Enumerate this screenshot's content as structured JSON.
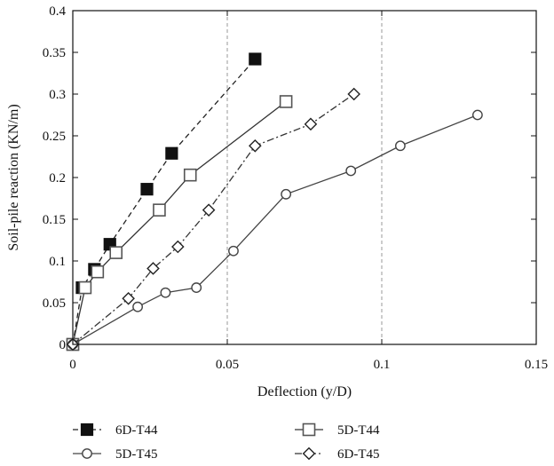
{
  "chart_data": {
    "type": "line",
    "xlabel": "Deflection (y/D)",
    "ylabel": "Soil-pile reaction (KN/m)",
    "xlim": [
      0,
      0.15
    ],
    "ylim": [
      0,
      0.4
    ],
    "xticks": [
      "0",
      "0.05",
      "0.1",
      "0.15"
    ],
    "yticks": [
      "0",
      "0.05",
      "0.1",
      "0.15",
      "0.2",
      "0.25",
      "0.3",
      "0.35",
      "0.4"
    ],
    "grid": "vertical dashed at x ticks",
    "legend_position": "bottom",
    "series": [
      {
        "name": "6D-T44",
        "marker": "square-filled",
        "line": "dashed",
        "color": "#222222",
        "x": [
          0,
          0.003,
          0.007,
          0.012,
          0.024,
          0.032,
          0.059
        ],
        "y": [
          0,
          0.068,
          0.09,
          0.12,
          0.186,
          0.229,
          0.342
        ]
      },
      {
        "name": "5D-T44",
        "marker": "square-open",
        "line": "solid",
        "color": "#333333",
        "x": [
          0,
          0.004,
          0.008,
          0.014,
          0.028,
          0.038,
          0.069
        ],
        "y": [
          0,
          0.068,
          0.087,
          0.11,
          0.161,
          0.203,
          0.291
        ]
      },
      {
        "name": "5D-T45",
        "marker": "circle-open",
        "line": "solid",
        "color": "#444444",
        "x": [
          0,
          0.021,
          0.03,
          0.04,
          0.052,
          0.069,
          0.09,
          0.106,
          0.131
        ],
        "y": [
          0,
          0.045,
          0.062,
          0.068,
          0.112,
          0.18,
          0.208,
          0.238,
          0.275
        ]
      },
      {
        "name": "6D-T45",
        "marker": "diamond-open",
        "line": "dashdot",
        "color": "#333333",
        "x": [
          0,
          0.018,
          0.026,
          0.034,
          0.044,
          0.059,
          0.077,
          0.091
        ],
        "y": [
          0,
          0.055,
          0.091,
          0.117,
          0.161,
          0.238,
          0.264,
          0.3
        ]
      }
    ]
  }
}
